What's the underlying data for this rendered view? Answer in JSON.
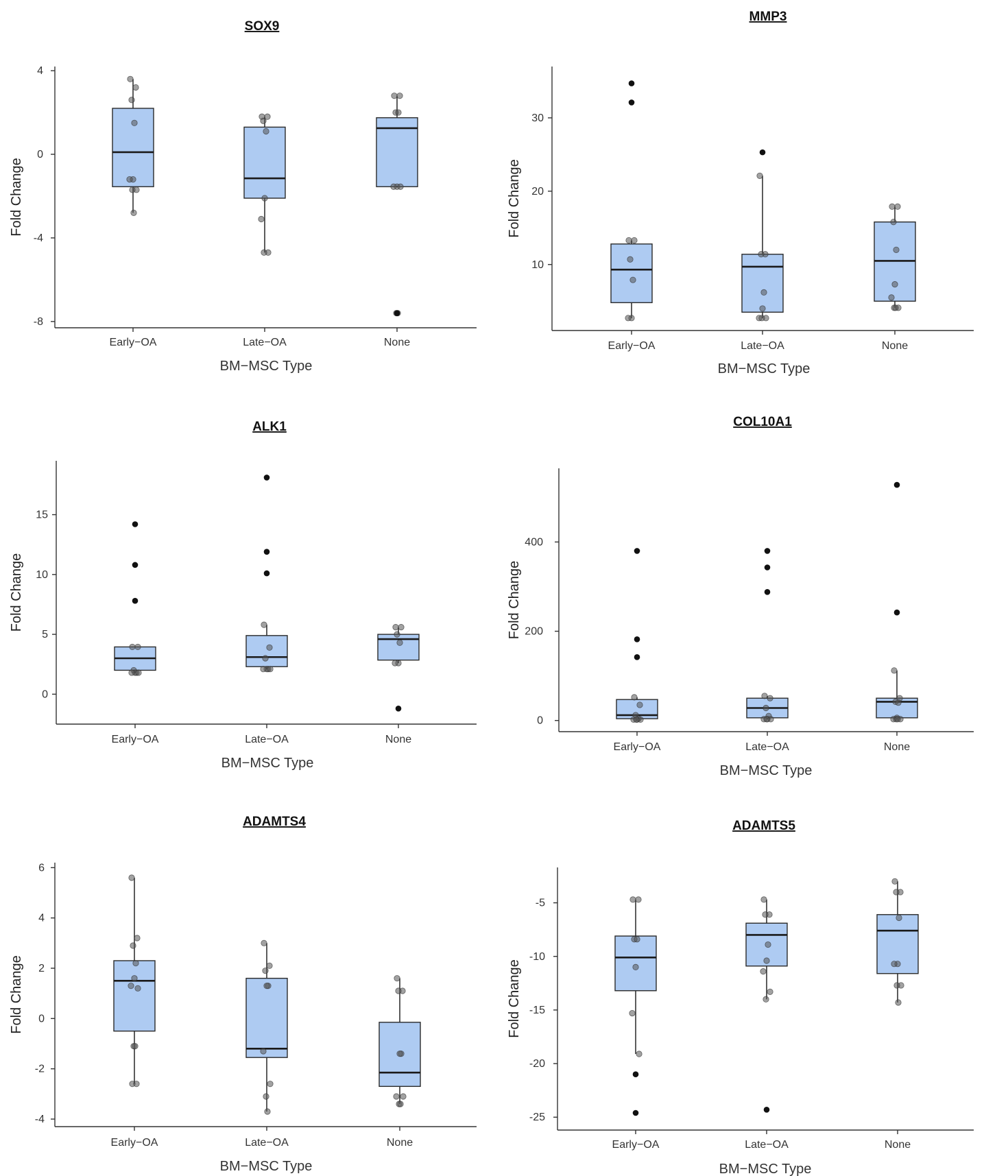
{
  "chart_data": [
    {
      "type": "box",
      "title": "SOX9",
      "xlabel": "BM−MSC Type",
      "ylabel": "Fold Change",
      "categories": [
        "Early−OA",
        "Late−OA",
        "None"
      ],
      "ylim": [
        -8.3,
        4.2
      ],
      "yticks": [
        4,
        0,
        -4,
        -8
      ],
      "ytick_labels": [
        "4",
        "0",
        "-4",
        "-8"
      ],
      "boxes": [
        {
          "q1": -1.55,
          "median": 0.1,
          "q3": 2.2,
          "whisker_low": -2.8,
          "whisker_high": 3.6,
          "outliers": [],
          "points": [
            3.6,
            3.2,
            2.6,
            1.5,
            -1.2,
            -1.2,
            -1.7,
            -1.7,
            -2.8
          ]
        },
        {
          "q1": -2.1,
          "median": -1.15,
          "q3": 1.3,
          "whisker_low": -4.7,
          "whisker_high": 1.8,
          "outliers": [],
          "points": [
            1.8,
            1.8,
            1.6,
            1.1,
            -2.1,
            -3.1,
            -4.7,
            -4.7
          ]
        },
        {
          "q1": -1.55,
          "median": 1.25,
          "q3": 1.75,
          "whisker_low": -1.55,
          "whisker_high": 2.8,
          "outliers": [
            -7.6
          ],
          "points": [
            2.8,
            2.8,
            2.0,
            2.0,
            -1.55,
            -1.55,
            -1.55,
            -7.6,
            -7.6
          ]
        }
      ]
    },
    {
      "type": "box",
      "title": "MMP3",
      "xlabel": "BM−MSC Type",
      "ylabel": "Fold Change",
      "categories": [
        "Early−OA",
        "Late−OA",
        "None"
      ],
      "ylim": [
        1,
        37
      ],
      "yticks": [
        30,
        20,
        10
      ],
      "ytick_labels": [
        "30",
        "20",
        "10"
      ],
      "boxes": [
        {
          "q1": 4.8,
          "median": 9.3,
          "q3": 12.8,
          "whisker_low": 2.7,
          "whisker_high": 13.3,
          "outliers": [
            34.7,
            32.1
          ],
          "points": [
            13.3,
            13.3,
            10.7,
            7.9,
            2.7,
            2.7
          ]
        },
        {
          "q1": 3.5,
          "median": 9.7,
          "q3": 11.4,
          "whisker_low": 2.7,
          "whisker_high": 22.1,
          "outliers": [
            25.3
          ],
          "points": [
            22.1,
            11.4,
            11.4,
            6.2,
            4.0,
            2.7,
            2.7,
            2.7
          ]
        },
        {
          "q1": 5.0,
          "median": 10.5,
          "q3": 15.8,
          "whisker_low": 4.1,
          "whisker_high": 17.9,
          "outliers": [],
          "points": [
            17.9,
            17.9,
            15.8,
            12.0,
            7.3,
            5.5,
            4.1,
            4.1,
            4.1
          ]
        }
      ]
    },
    {
      "type": "box",
      "title": "ALK1",
      "xlabel": "BM−MSC Type",
      "ylabel": "Fold Change",
      "categories": [
        "Early−OA",
        "Late−OA",
        "None"
      ],
      "ylim": [
        -2.5,
        19.5
      ],
      "yticks": [
        15,
        10,
        5,
        0
      ],
      "ytick_labels": [
        "15",
        "10",
        "5",
        "0"
      ],
      "boxes": [
        {
          "q1": 2.0,
          "median": 3.0,
          "q3": 3.95,
          "whisker_low": 1.8,
          "whisker_high": 3.95,
          "outliers": [
            14.2,
            10.8,
            7.8
          ],
          "points": [
            3.95,
            3.95,
            2.0,
            1.8,
            1.8,
            1.8,
            1.8
          ]
        },
        {
          "q1": 2.3,
          "median": 3.1,
          "q3": 4.9,
          "whisker_low": 2.1,
          "whisker_high": 5.8,
          "outliers": [
            18.1,
            11.9,
            10.1
          ],
          "points": [
            5.8,
            3.9,
            3.0,
            2.1,
            2.1,
            2.1,
            2.1
          ]
        },
        {
          "q1": 2.85,
          "median": 4.6,
          "q3": 5.0,
          "whisker_low": 2.6,
          "whisker_high": 5.6,
          "outliers": [
            -1.2
          ],
          "points": [
            5.6,
            5.6,
            5.0,
            4.3,
            2.6,
            2.6
          ]
        }
      ]
    },
    {
      "type": "box",
      "title": "COL10A1",
      "xlabel": "BM−MSC Type",
      "ylabel": "Fold Change",
      "categories": [
        "Early−OA",
        "Late−OA",
        "None"
      ],
      "ylim": [
        -25,
        565
      ],
      "yticks": [
        400,
        200,
        0
      ],
      "ytick_labels": [
        "400",
        "200",
        "0"
      ],
      "boxes": [
        {
          "q1": 4,
          "median": 12,
          "q3": 47,
          "whisker_low": 2,
          "whisker_high": 52,
          "outliers": [
            380,
            182,
            142
          ],
          "points": [
            52,
            35,
            12,
            4,
            2,
            2,
            2,
            2
          ]
        },
        {
          "q1": 6,
          "median": 28,
          "q3": 50,
          "whisker_low": 3,
          "whisker_high": 55,
          "outliers": [
            380,
            343,
            288
          ],
          "points": [
            55,
            50,
            28,
            10,
            3,
            3,
            3,
            3
          ]
        },
        {
          "q1": 6,
          "median": 42,
          "q3": 50,
          "whisker_low": 3,
          "whisker_high": 112,
          "outliers": [
            528,
            242
          ],
          "points": [
            112,
            50,
            42,
            40,
            6,
            3,
            3,
            3,
            3
          ]
        }
      ]
    },
    {
      "type": "box",
      "title": "ADAMTS4",
      "xlabel": "BM−MSC Type",
      "ylabel": "Fold Change",
      "categories": [
        "Early−OA",
        "Late−OA",
        "None"
      ],
      "ylim": [
        -4.3,
        6.2
      ],
      "yticks": [
        6,
        4,
        2,
        0,
        -2,
        -4
      ],
      "ytick_labels": [
        "6",
        "4",
        "2",
        "0",
        "-2",
        "-4"
      ],
      "boxes": [
        {
          "q1": -0.5,
          "median": 1.5,
          "q3": 2.3,
          "whisker_low": -2.6,
          "whisker_high": 5.6,
          "outliers": [],
          "points": [
            5.6,
            3.2,
            2.9,
            2.2,
            1.6,
            1.3,
            1.2,
            -1.1,
            -1.1,
            -2.6,
            -2.6
          ]
        },
        {
          "q1": -1.55,
          "median": -1.2,
          "q3": 1.6,
          "whisker_low": -3.7,
          "whisker_high": 3.0,
          "outliers": [],
          "points": [
            3.0,
            2.1,
            1.9,
            1.3,
            1.3,
            -1.3,
            -2.6,
            -3.1,
            -3.7
          ]
        },
        {
          "q1": -2.7,
          "median": -2.15,
          "q3": -0.15,
          "whisker_low": -3.4,
          "whisker_high": 1.6,
          "outliers": [],
          "points": [
            1.6,
            1.1,
            1.1,
            -1.4,
            -1.4,
            -3.1,
            -3.1,
            -3.4,
            -3.4
          ]
        }
      ]
    },
    {
      "type": "box",
      "title": "ADAMTS5",
      "xlabel": "BM−MSC Type",
      "ylabel": "Fold Change",
      "categories": [
        "Early−OA",
        "Late−OA",
        "None"
      ],
      "ylim": [
        -26.2,
        -1.7
      ],
      "yticks": [
        -5,
        -10,
        -15,
        -20,
        -25
      ],
      "ytick_labels": [
        "-5",
        "-10",
        "-15",
        "-20",
        "-25"
      ],
      "boxes": [
        {
          "q1": -13.2,
          "median": -10.1,
          "q3": -8.1,
          "whisker_low": -19.1,
          "whisker_high": -4.7,
          "outliers": [
            -21.0,
            -24.6
          ],
          "points": [
            -4.7,
            -4.7,
            -8.4,
            -8.4,
            -11.0,
            -15.3,
            -19.1
          ]
        },
        {
          "q1": -10.9,
          "median": -8.0,
          "q3": -6.9,
          "whisker_low": -14.0,
          "whisker_high": -4.7,
          "outliers": [
            -24.3
          ],
          "points": [
            -4.7,
            -6.1,
            -6.1,
            -8.9,
            -10.4,
            -11.4,
            -13.3,
            -14.0
          ]
        },
        {
          "q1": -11.6,
          "median": -7.6,
          "q3": -6.1,
          "whisker_low": -14.3,
          "whisker_high": -3.0,
          "outliers": [],
          "points": [
            -3.0,
            -4.0,
            -4.0,
            -6.4,
            -10.7,
            -10.7,
            -12.7,
            -12.7,
            -14.3
          ]
        }
      ]
    }
  ]
}
